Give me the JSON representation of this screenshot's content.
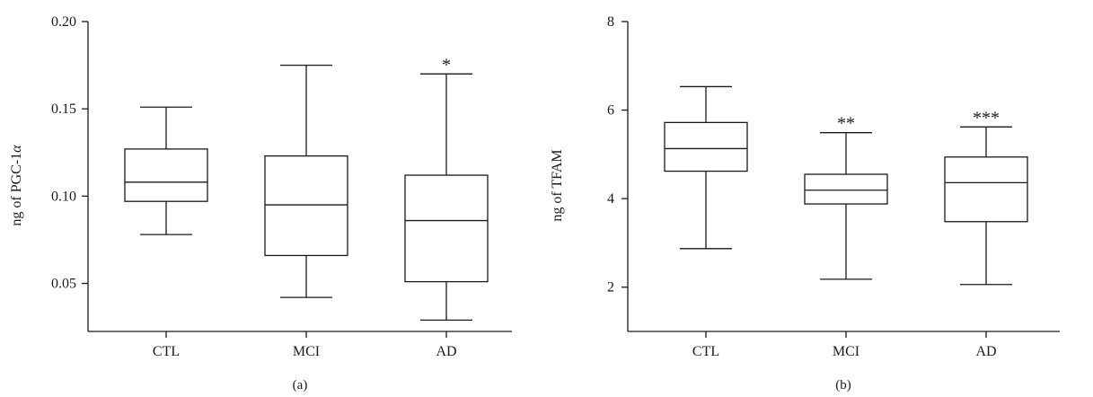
{
  "chart_data": [
    {
      "type": "boxplot",
      "panel_label": "(a)",
      "ylabel": "ng of PGC-1",
      "ylabel_symbol": "α",
      "ylim": [
        0.0225,
        0.2
      ],
      "yticks": [
        0.05,
        0.1,
        0.15,
        0.2
      ],
      "ytick_labels": [
        "0.05",
        "0.10",
        "0.15",
        "0.20"
      ],
      "categories": [
        "CTL",
        "MCI",
        "AD"
      ],
      "boxes": [
        {
          "min": 0.078,
          "q1": 0.097,
          "median": 0.108,
          "q3": 0.127,
          "max": 0.151,
          "significance": ""
        },
        {
          "min": 0.042,
          "q1": 0.066,
          "median": 0.095,
          "q3": 0.123,
          "max": 0.175,
          "significance": ""
        },
        {
          "min": 0.029,
          "q1": 0.051,
          "median": 0.086,
          "q3": 0.112,
          "max": 0.17,
          "significance": "*"
        }
      ]
    },
    {
      "type": "boxplot",
      "panel_label": "(b)",
      "ylabel": "ng of TFAM",
      "ylabel_symbol": "",
      "ylim": [
        1.0,
        8.0
      ],
      "yticks": [
        2,
        4,
        6,
        8
      ],
      "ytick_labels": [
        "2",
        "4",
        "6",
        "8"
      ],
      "categories": [
        "CTL",
        "MCI",
        "AD"
      ],
      "boxes": [
        {
          "min": 2.87,
          "q1": 4.62,
          "median": 5.13,
          "q3": 5.72,
          "max": 6.53,
          "significance": ""
        },
        {
          "min": 2.18,
          "q1": 3.88,
          "median": 4.19,
          "q3": 4.55,
          "max": 5.49,
          "significance": "**"
        },
        {
          "min": 2.06,
          "q1": 3.48,
          "median": 4.36,
          "q3": 4.94,
          "max": 5.62,
          "significance": "***"
        }
      ]
    }
  ]
}
